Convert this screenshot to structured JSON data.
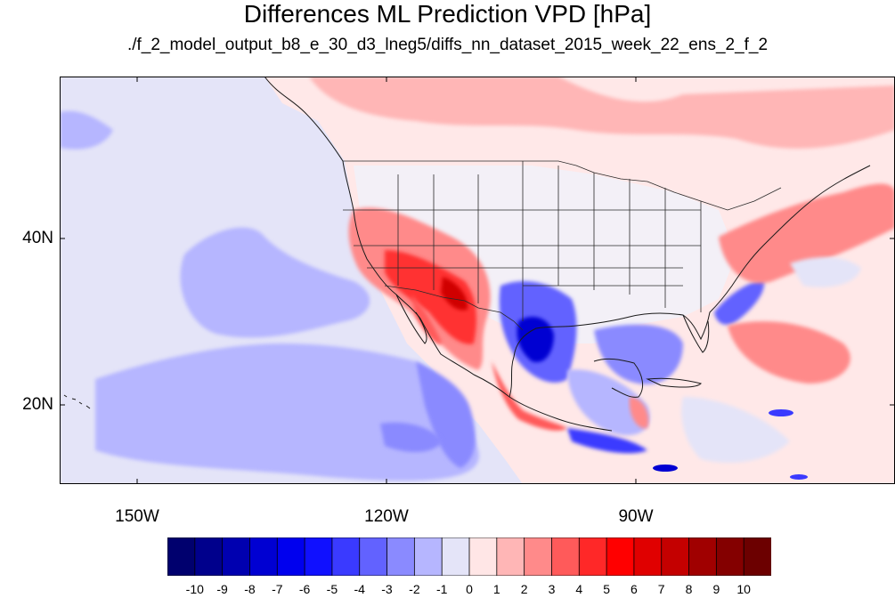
{
  "header": {
    "title": "Differences ML Prediction VPD [hPa]",
    "subtitle": "./f_2_model_output_b8_e_30_d3_lneg5/diffs_nn_dataset_2015_week_22_ens_2_f_2"
  },
  "map": {
    "lat_labels": [
      "40N",
      "20N"
    ],
    "lon_labels": [
      "150W",
      "120W",
      "90W"
    ],
    "field": "VPD difference",
    "extent": {
      "lon_min": -160,
      "lon_max": -60,
      "lat_min": 10.5,
      "lat_max": 59
    }
  },
  "colorbar": {
    "labels": [
      "-10",
      "-9",
      "-8",
      "-7",
      "-6",
      "-5",
      "-4",
      "-3",
      "-2",
      "-1",
      "0",
      "1",
      "2",
      "3",
      "4",
      "5",
      "6",
      "7",
      "8",
      "9",
      "10"
    ],
    "colors": [
      "#00006e",
      "#00008c",
      "#0000b0",
      "#0000d2",
      "#0000ee",
      "#1010ff",
      "#3a3aff",
      "#6262ff",
      "#8a8aff",
      "#b6b6ff",
      "#e4e4f8",
      "#ffe6e6",
      "#ffb6b6",
      "#ff8a8a",
      "#ff5a5a",
      "#ff2828",
      "#ff0000",
      "#e00000",
      "#c40000",
      "#a00000",
      "#840000",
      "#6c0000"
    ]
  }
}
